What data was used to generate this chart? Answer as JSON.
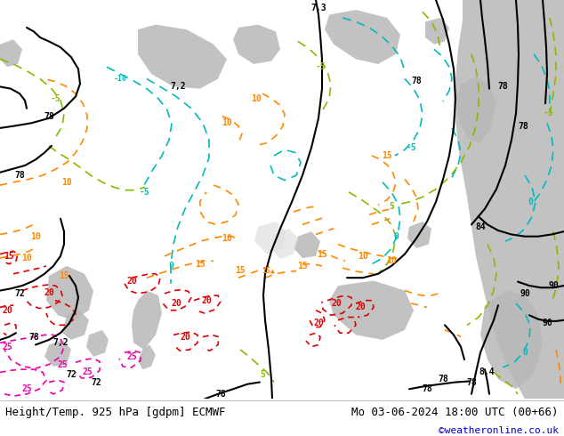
{
  "title_left": "Height/Temp. 925 hPa [gdpm] ECMWF",
  "title_right": "Mo 03-06-2024 18:00 UTC (00+66)",
  "credit": "©weatheronline.co.uk",
  "credit_color": "#0000cc",
  "fig_width": 6.34,
  "fig_height": 4.9,
  "dpi": 100,
  "bottom_bar_color": "#ffffff",
  "bottom_text_color": "#000000",
  "font_family": "monospace",
  "title_fontsize": 9.0,
  "credit_fontsize": 8.0,
  "map_bg_green": "#c8f0a0",
  "map_bg_gray": "#b8b8b8",
  "map_bg_white": "#e8e8e8",
  "contour_black": "#000000",
  "contour_cyan": "#00bbbb",
  "contour_orange": "#ff8800",
  "contour_lime": "#88bb00",
  "contour_red": "#dd0000",
  "contour_pink": "#ee00aa",
  "lw_black": 1.5,
  "lw_color": 1.2
}
